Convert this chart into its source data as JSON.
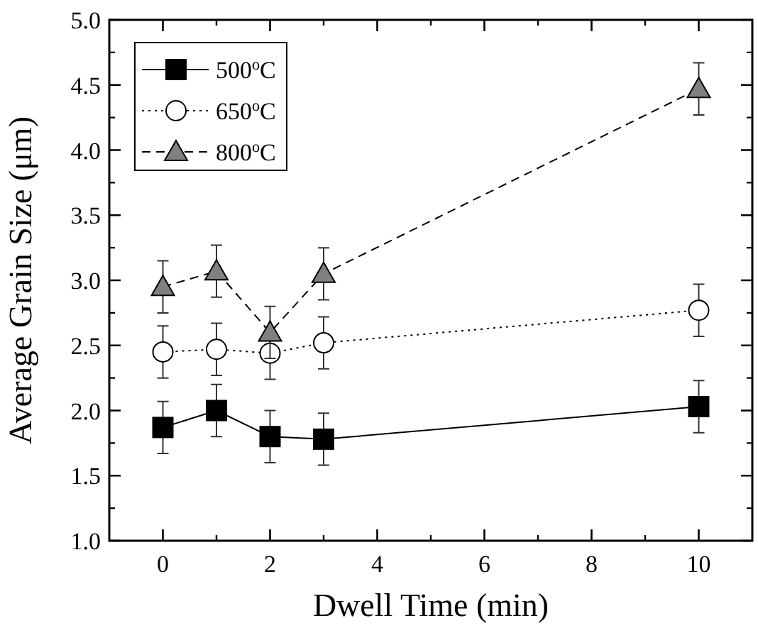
{
  "chart_data": {
    "type": "line",
    "xlabel": "Dwell Time (min)",
    "ylabel": "Average Grain Size (μm)",
    "xlim": [
      -1,
      11
    ],
    "xticks": [
      0,
      2,
      4,
      6,
      8,
      10
    ],
    "ylim": [
      1,
      5
    ],
    "yticks": [
      {
        "value": 1,
        "label": "1.0"
      },
      1.5,
      {
        "value": 2,
        "label": "2.0"
      },
      2.5,
      {
        "value": 3,
        "label": "3.0"
      },
      3.5,
      {
        "value": 4,
        "label": "4.0"
      },
      4.5,
      {
        "value": 5,
        "label": "5.0"
      }
    ],
    "x": [
      0,
      1,
      2,
      3,
      10
    ],
    "legend": "top left",
    "grid": false,
    "series": [
      {
        "name": "500$^{o}$C",
        "color": "#000000",
        "marker": "square",
        "line_style": "solid",
        "values": [
          1.87,
          2.0,
          1.8,
          1.78,
          2.03
        ],
        "errors": [
          0.2,
          0.2,
          0.2,
          0.2,
          0.2
        ]
      },
      {
        "name": "650$^{o}$C",
        "color": "#000000",
        "marker": "circle",
        "line_style": "dotted",
        "values": [
          2.45,
          2.47,
          2.44,
          2.52,
          2.77
        ],
        "errors": [
          0.2,
          0.2,
          0.2,
          0.2,
          0.2
        ]
      },
      {
        "name": "800$^{o}$C",
        "color": "#808080",
        "marker": "triangle",
        "line_style": "dashed",
        "values": [
          2.95,
          3.07,
          2.6,
          3.05,
          4.47
        ],
        "errors": [
          0.2,
          0.2,
          0.2,
          0.2,
          0.2
        ]
      }
    ]
  }
}
